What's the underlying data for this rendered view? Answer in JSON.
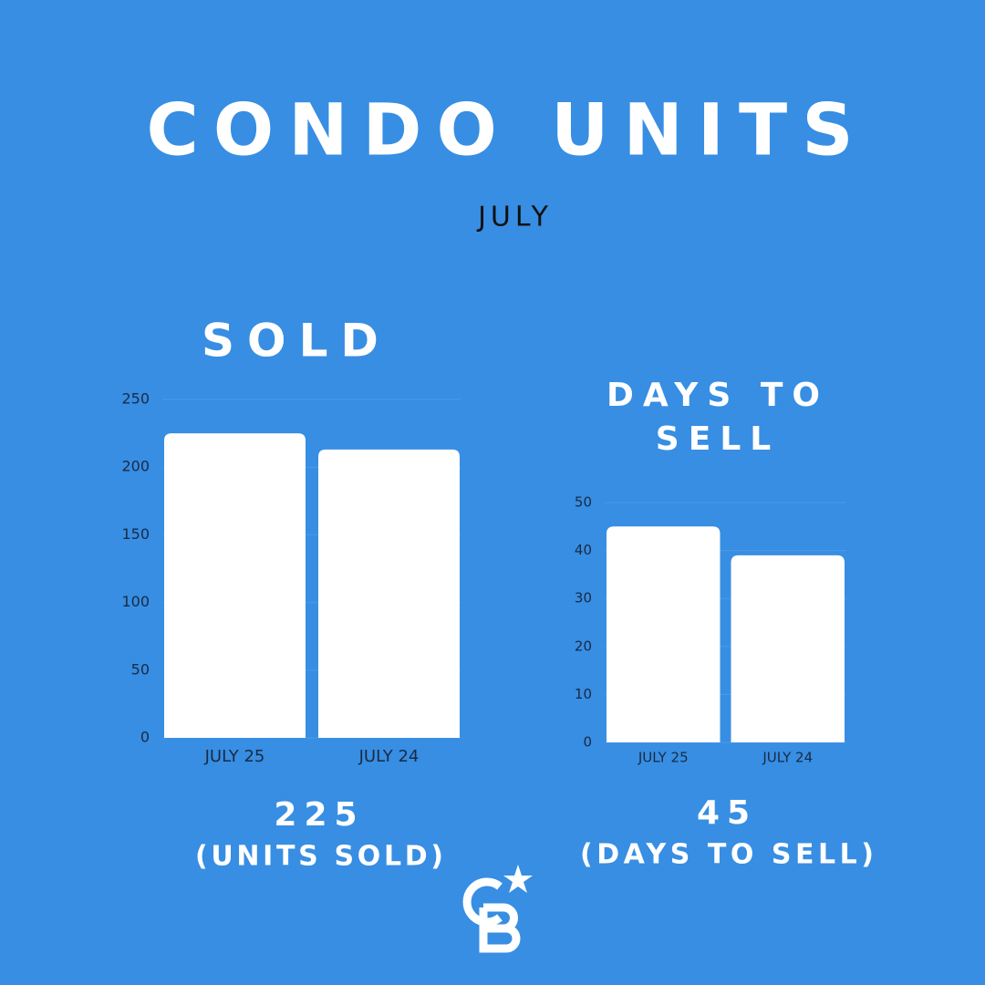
{
  "header": {
    "title": "CONDO UNITS",
    "subtitle": "JULY"
  },
  "chart_data": [
    {
      "type": "bar",
      "title": "SOLD",
      "categories": [
        "JULY 25",
        "JULY 24"
      ],
      "values": [
        225,
        213
      ],
      "color": "#ffffff",
      "ylim": [
        0,
        250
      ],
      "yticks": [
        0,
        50,
        100,
        150,
        200,
        250
      ],
      "grid": true,
      "annotation": "(UNITS SOLD)"
    },
    {
      "type": "bar",
      "title": "DAYS TO SELL",
      "categories": [
        "JULY 25",
        "JULY 24"
      ],
      "values": [
        45,
        39
      ],
      "color": "#ffffff",
      "ylim": [
        0,
        50
      ],
      "yticks": [
        0,
        10,
        20,
        30,
        40,
        50
      ],
      "grid": true,
      "annotation": "(DAYS TO SELL)"
    }
  ]
}
